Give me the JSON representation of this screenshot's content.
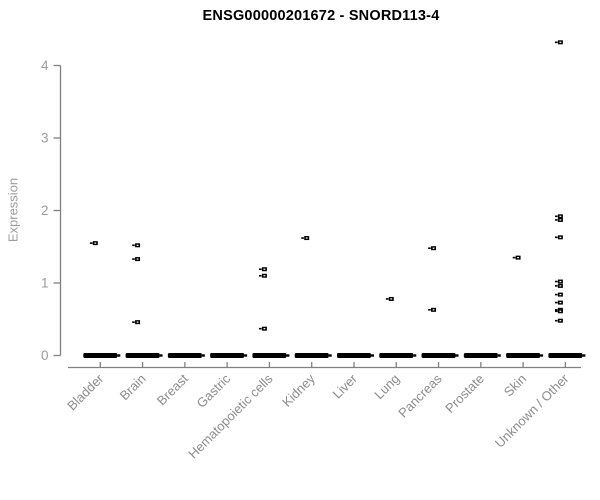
{
  "chart_data": {
    "type": "scatter",
    "title": "ENSG00000201672 - SNORD113-4",
    "ylabel": "Expression",
    "xlabel": "",
    "ylim": [
      0,
      4.4
    ],
    "yticks": [
      0,
      1,
      2,
      3,
      4
    ],
    "grid": false,
    "legend": false,
    "marker": "small-open-square",
    "baseline_cluster_value": 0,
    "baseline_cluster_all_categories": true,
    "categories": [
      "Bladder",
      "Brain",
      "Breast",
      "Gastric",
      "Hematopoietic cells",
      "Kidney",
      "Liver",
      "Lung",
      "Pancreas",
      "Prostate",
      "Skin",
      "Unknown / Other"
    ],
    "values_by_category": [
      [
        1.55
      ],
      [
        1.52,
        1.33,
        0.46
      ],
      [],
      [],
      [
        1.19,
        1.1,
        0.37
      ],
      [
        1.62
      ],
      [],
      [
        0.78
      ],
      [
        1.48,
        0.63
      ],
      [],
      [
        1.35
      ],
      [
        4.32,
        1.92,
        1.87,
        1.63,
        1.02,
        0.96,
        0.84,
        0.73,
        0.63,
        0.61,
        0.48
      ]
    ],
    "colors": {
      "point": "#000000",
      "axis": "#808080",
      "tick_label": "#9c9c9c",
      "category_label": "#8c8c8c",
      "title": "#000000",
      "background": "#ffffff"
    }
  }
}
